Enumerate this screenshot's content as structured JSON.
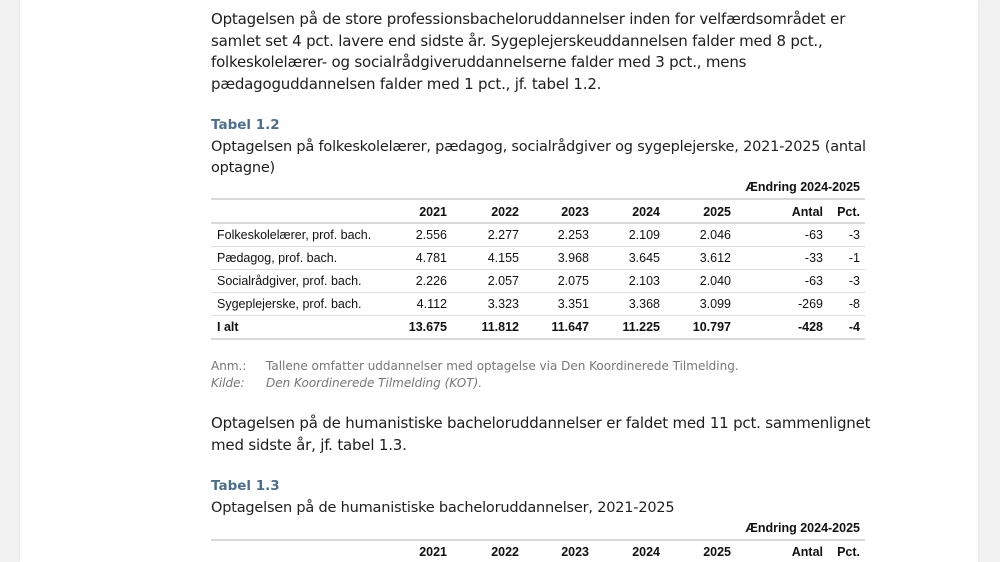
{
  "paragraph1": "Optagelsen på de store professionsbacheloruddannelser inden for velfærdsområdet er samlet set 4 pct. lavere end sidste år. Sygeplejerskeuddannelsen falder med 8 pct., folkeskolelærer- og socialrådgiveruddannelserne falder med 3 pct., mens pædagoguddannelsen falder med 1 pct., jf. tabel 1.2.",
  "table12": {
    "label": "Tabel 1.2",
    "caption": "Optagelsen på folkeskolelærer, pædagog, socialrådgiver og sygeplejerske, 2021-2025 (antal optagne)",
    "change_header": "Ændring 2024-2025",
    "columns": [
      "2021",
      "2022",
      "2023",
      "2024",
      "2025",
      "Antal",
      "Pct."
    ],
    "rows": [
      {
        "label": "Folkeskolelærer, prof. bach.",
        "values": [
          "2.556",
          "2.277",
          "2.253",
          "2.109",
          "2.046",
          "-63",
          "-3"
        ]
      },
      {
        "label": "Pædagog, prof. bach.",
        "values": [
          "4.781",
          "4.155",
          "3.968",
          "3.645",
          "3.612",
          "-33",
          "-1"
        ]
      },
      {
        "label": "Socialrådgiver, prof. bach.",
        "values": [
          "2.226",
          "2.057",
          "2.075",
          "2.103",
          "2.040",
          "-63",
          "-3"
        ]
      },
      {
        "label": "Sygeplejerske, prof. bach.",
        "values": [
          "4.112",
          "3.323",
          "3.351",
          "3.368",
          "3.099",
          "-269",
          "-8"
        ]
      },
      {
        "label": "I alt",
        "values": [
          "13.675",
          "11.812",
          "11.647",
          "11.225",
          "10.797",
          "-428",
          "-4"
        ]
      }
    ],
    "note_key": "Anm.:",
    "note": "Tallene omfatter uddannelser med optagelse via Den Koordinerede Tilmelding.",
    "source_key": "Kilde:",
    "source": "Den Koordinerede Tilmelding (KOT)."
  },
  "paragraph2": "Optagelsen på de humanistiske bacheloruddannelser er faldet med 11 pct. sammenlignet med sidste år, jf. tabel 1.3.",
  "table13": {
    "label": "Tabel 1.3",
    "caption": "Optagelsen på de humanistiske bacheloruddannelser, 2021-2025",
    "change_header": "Ændring 2024-2025",
    "columns": [
      "2021",
      "2022",
      "2023",
      "2024",
      "2025",
      "Antal",
      "Pct."
    ]
  }
}
